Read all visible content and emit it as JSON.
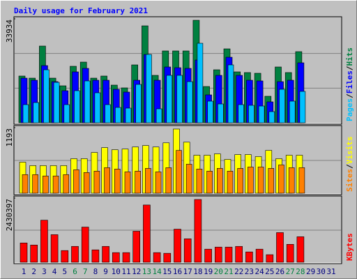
{
  "chart_data": [
    {
      "type": "bar",
      "title": "Daily usage for February 2021",
      "ylim": [
        0,
        33934
      ],
      "yticks": [
        33934
      ],
      "separator": "/",
      "series": [
        {
          "name": "Hits",
          "color": "#008040",
          "values": [
            15256,
            14573,
            25047,
            14573,
            12068,
            18444,
            19810,
            14573,
            15256,
            12296,
            11385,
            18899,
            31650,
            15484,
            23453,
            23453,
            23453,
            33472,
            11840,
            17305,
            24136,
            16622,
            16394,
            16167,
            8653,
            18216,
            16394,
            23225,
            null,
            null,
            null
          ]
        },
        {
          "name": "Files",
          "color": "#0000ff",
          "values": [
            14573,
            13890,
            18671,
            13434,
            10474,
            16622,
            17761,
            13890,
            13890,
            10930,
            10019,
            13890,
            22315,
            13890,
            18216,
            17988,
            17761,
            20493,
            9108,
            15484,
            21404,
            15484,
            13890,
            13662,
            6831,
            13434,
            13890,
            19582,
            null,
            null,
            null
          ]
        },
        {
          "name": "Pages",
          "color": "#00c0ff",
          "values": [
            5920,
            6603,
            17305,
            13207,
            5920,
            10474,
            13662,
            9791,
            5920,
            5009,
            4782,
            12524,
            22315,
            4554,
            15484,
            15484,
            13434,
            25958,
            7059,
            6148,
            18899,
            5920,
            5693,
            5465,
            3643,
            10930,
            7059,
            10247,
            null,
            null,
            null
          ]
        }
      ]
    },
    {
      "type": "bar",
      "ylim": [
        0,
        1193
      ],
      "yticks": [
        1193
      ],
      "separator": "/",
      "series": [
        {
          "name": "Visits",
          "color": "#ffff00",
          "values": [
            565,
            502,
            502,
            502,
            502,
            628,
            628,
            741,
            829,
            791,
            804,
            841,
            867,
            841,
            917,
            1168,
            929,
            691,
            691,
            716,
            615,
            703,
            703,
            666,
            779,
            628,
            691,
            691,
            null,
            null,
            null
          ]
        },
        {
          "name": "Sites",
          "color": "#ff8000",
          "values": [
            339,
            339,
            314,
            314,
            339,
            427,
            377,
            402,
            465,
            440,
            389,
            402,
            452,
            389,
            465,
            779,
            528,
            440,
            402,
            452,
            402,
            452,
            477,
            477,
            452,
            515,
            465,
            465,
            null,
            null,
            null
          ]
        }
      ]
    },
    {
      "type": "bar",
      "ylim": [
        0,
        2430397
      ],
      "yticks": [
        2430397
      ],
      "categories": [
        "1",
        "2",
        "3",
        "4",
        "5",
        "6",
        "7",
        "8",
        "9",
        "10",
        "11",
        "12",
        "13",
        "14",
        "15",
        "16",
        "17",
        "18",
        "19",
        "20",
        "21",
        "22",
        "23",
        "24",
        "25",
        "26",
        "27",
        "28",
        "29",
        "30",
        "31"
      ],
      "category_colors": [
        "#000080",
        "#000080",
        "#000080",
        "#000080",
        "#000080",
        "#008040",
        "#008040",
        "#000080",
        "#000080",
        "#000080",
        "#000080",
        "#000080",
        "#008040",
        "#008040",
        "#000080",
        "#000080",
        "#000080",
        "#000080",
        "#000080",
        "#008040",
        "#008040",
        "#000080",
        "#000080",
        "#000080",
        "#000080",
        "#000080",
        "#008040",
        "#008040",
        "#000080",
        "#000080",
        "#000080"
      ],
      "series": [
        {
          "name": "KBytes",
          "color": "#ff0000",
          "values": [
            731724,
            653325,
            1594113,
            1045320,
            444261,
            601059,
            1332783,
            470394,
            601059,
            365862,
            365862,
            1175985,
            2169039,
            365862,
            339729,
            1254384,
            888522,
            2378103,
            496527,
            574926,
            574926,
            601059,
            391995,
            496527,
            287463,
            1123719,
            679458,
            966921,
            null,
            null,
            null
          ]
        }
      ]
    }
  ]
}
